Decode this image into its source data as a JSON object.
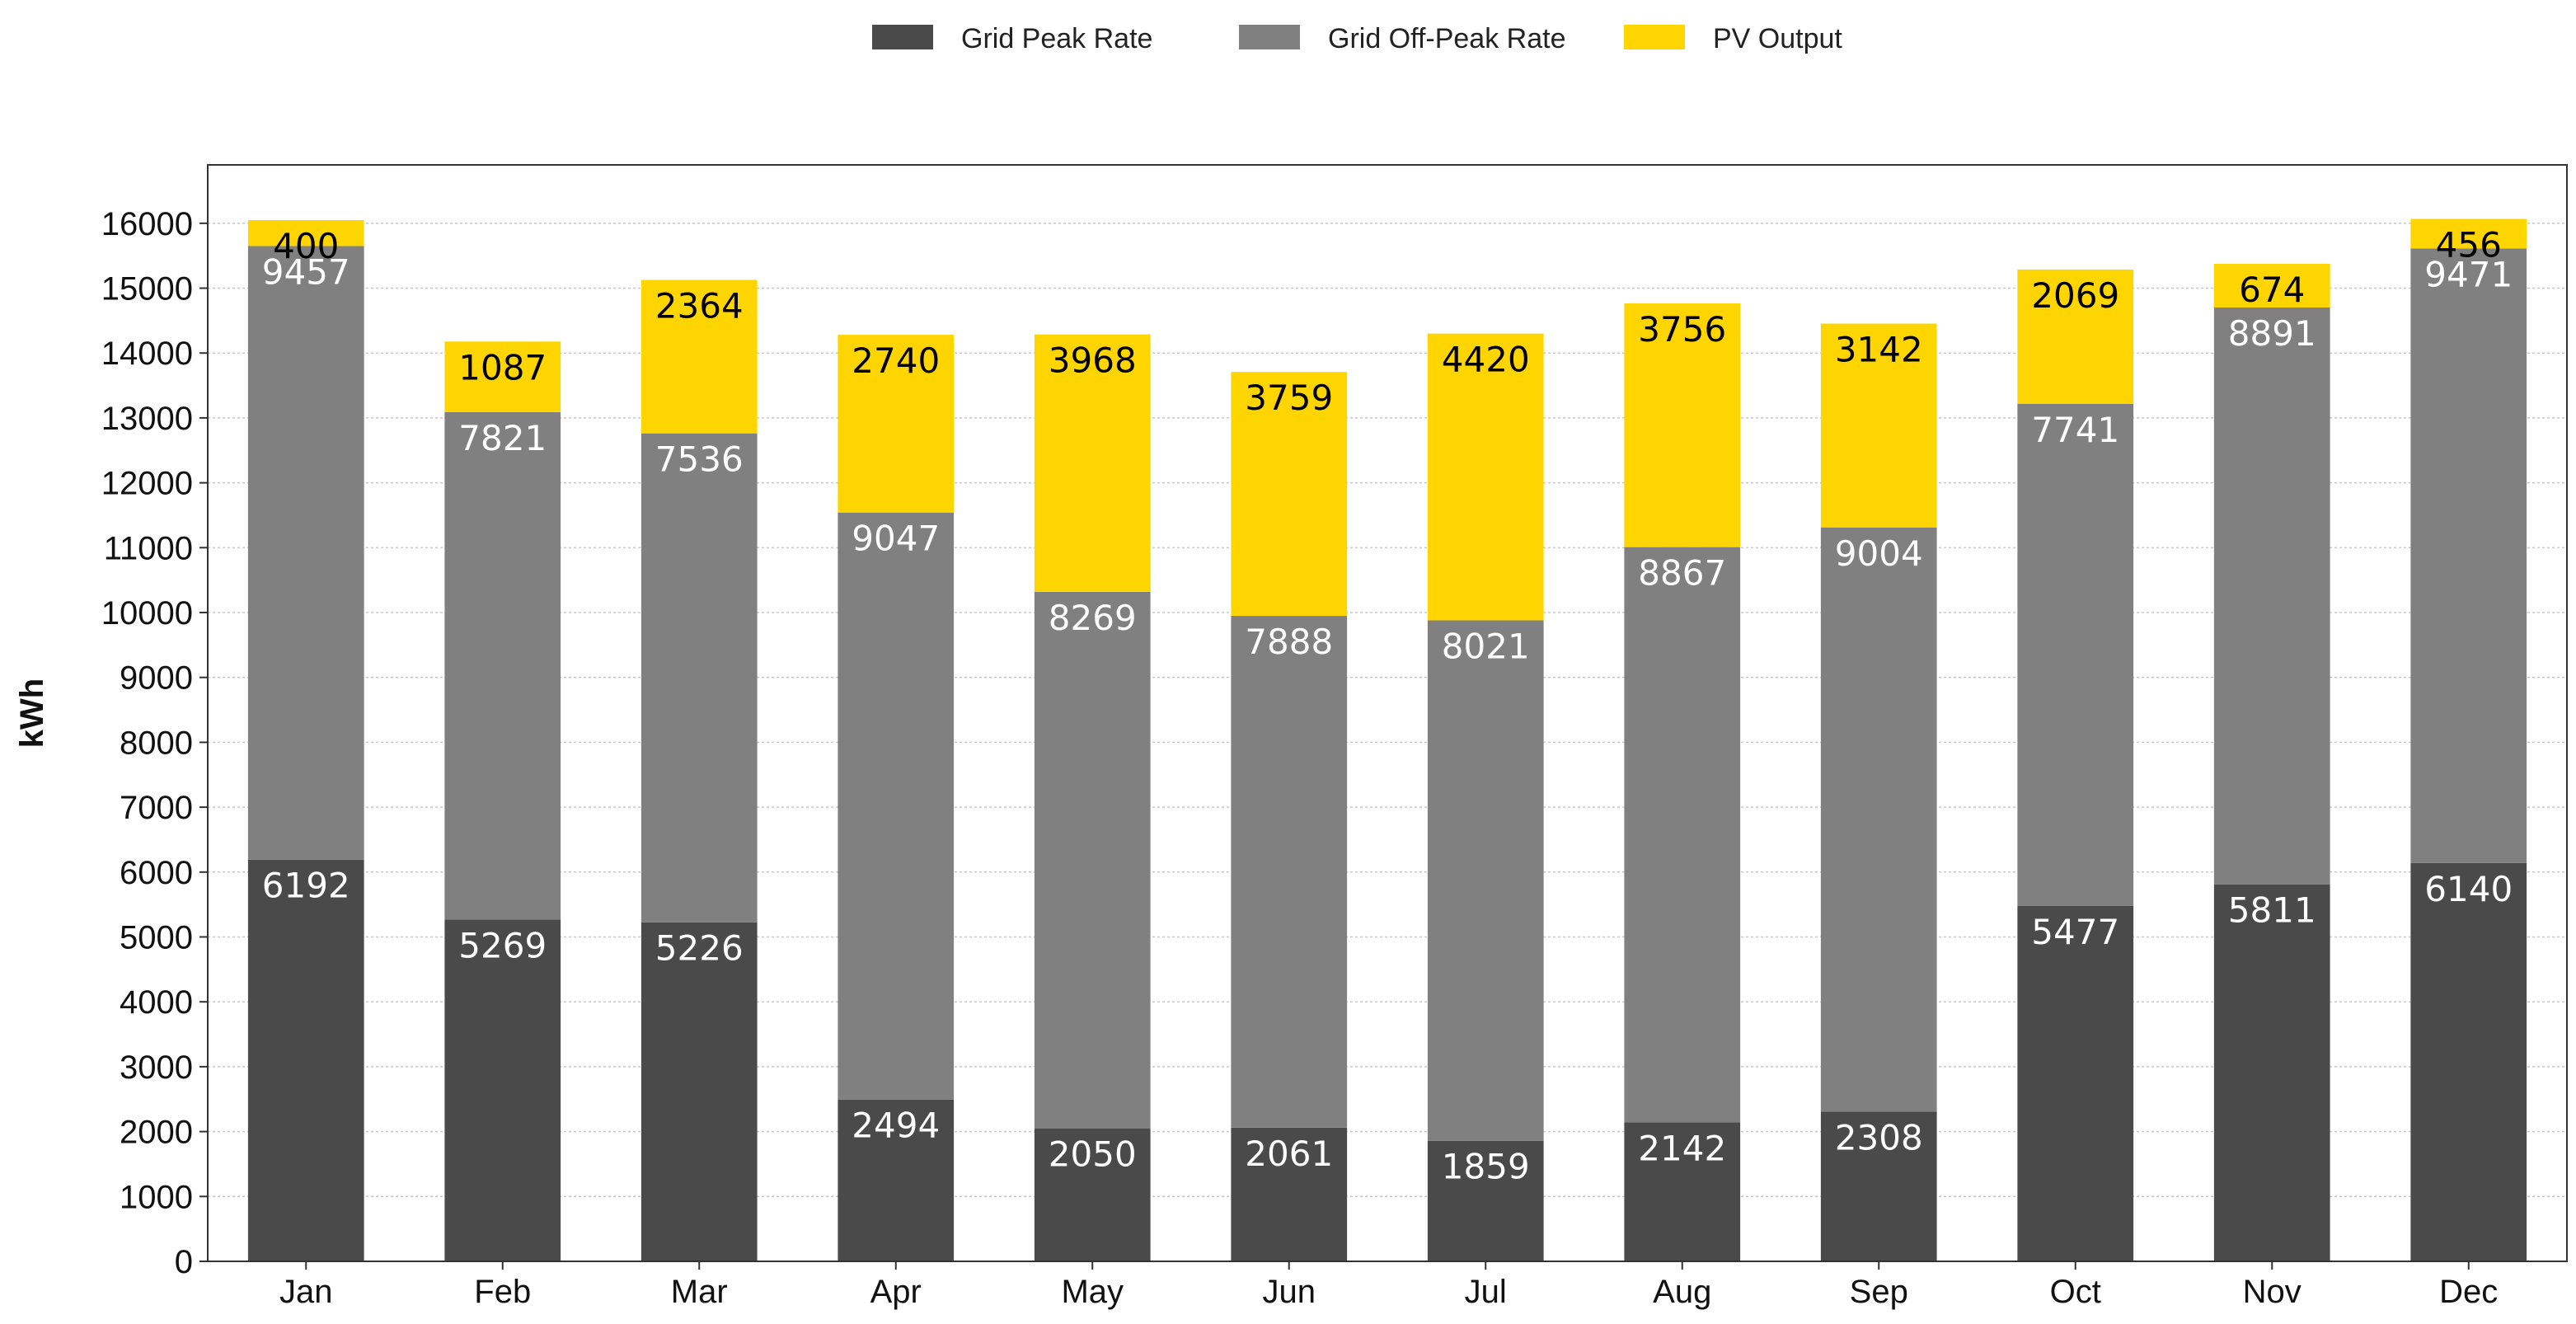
{
  "chart_data": {
    "type": "bar",
    "stacked": true,
    "categories": [
      "Jan",
      "Feb",
      "Mar",
      "Apr",
      "May",
      "Jun",
      "Jul",
      "Aug",
      "Sep",
      "Oct",
      "Nov",
      "Dec"
    ],
    "series": [
      {
        "name": "Grid Peak Rate",
        "color": "#4a4a4a",
        "label_color": "#ffffff",
        "values": [
          6192,
          5269,
          5226,
          2494,
          2050,
          2061,
          1859,
          2142,
          2308,
          5477,
          5811,
          6140
        ]
      },
      {
        "name": "Grid Off-Peak Rate",
        "color": "#808080",
        "label_color": "#ffffff",
        "values": [
          9457,
          7821,
          7536,
          9047,
          8269,
          7888,
          8021,
          8867,
          9004,
          7741,
          8891,
          9471
        ]
      },
      {
        "name": "PV Output",
        "color": "#ffd500",
        "label_color": "#000000",
        "values": [
          400,
          1087,
          2364,
          2740,
          3968,
          3759,
          4420,
          3756,
          3142,
          2069,
          674,
          456
        ]
      }
    ],
    "xlabel": "",
    "ylabel": "kWh",
    "ylim": [
      0,
      16900
    ],
    "yticks": [
      0,
      1000,
      2000,
      3000,
      4000,
      5000,
      6000,
      7000,
      8000,
      9000,
      10000,
      11000,
      12000,
      13000,
      14000,
      15000,
      16000
    ],
    "grid": true,
    "legend_position": "top-center"
  }
}
